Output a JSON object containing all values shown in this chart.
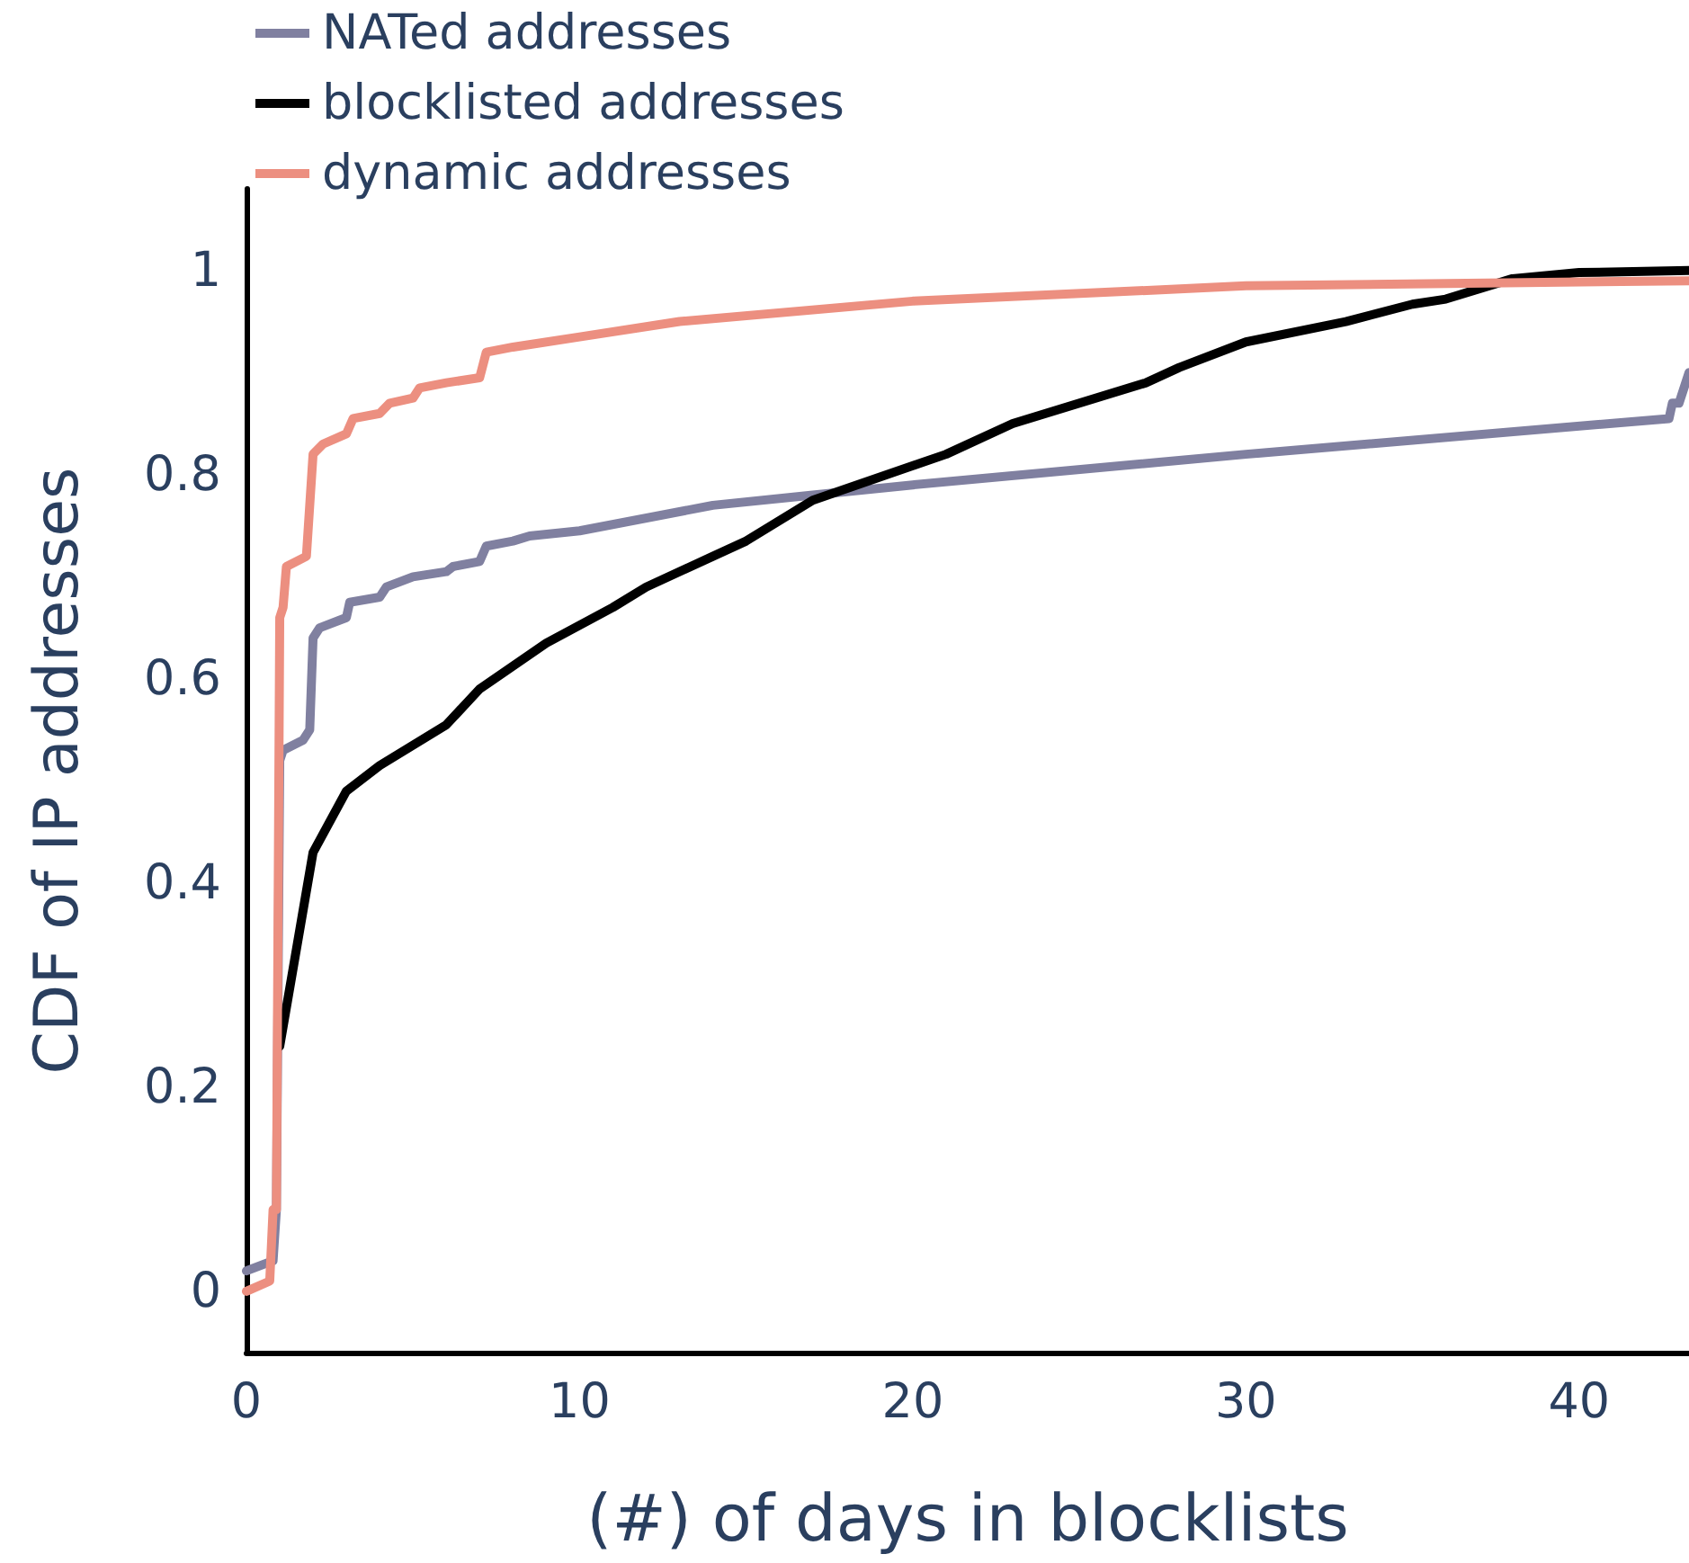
{
  "chart_data": {
    "type": "line",
    "xlabel": "(#) of days in blocklists",
    "ylabel": "CDF of IP addresses",
    "xlim": [
      0,
      43.3
    ],
    "xticks": [
      0,
      10,
      20,
      30,
      40
    ],
    "ylim": [
      -0.06,
      1.08
    ],
    "yticks": [
      0,
      0.2,
      0.4,
      0.6,
      0.8,
      1
    ],
    "grid": false,
    "legend": "top left",
    "marker": "none",
    "line_style": "solid",
    "series": [
      {
        "name": "NATed addresses",
        "color": "#8080a0",
        "x": [
          0,
          0.8,
          0.9,
          1.0,
          1.1,
          1.7,
          1.9,
          2.0,
          2.2,
          3.0,
          3.1,
          4.0,
          4.2,
          5,
          6,
          6.2,
          7,
          7.2,
          8,
          8.5,
          10,
          14,
          17,
          20,
          30,
          42.7,
          42.8,
          43.0,
          43.3
        ],
        "values": [
          0.02,
          0.03,
          0.08,
          0.52,
          0.53,
          0.54,
          0.55,
          0.64,
          0.65,
          0.66,
          0.675,
          0.68,
          0.69,
          0.7,
          0.705,
          0.71,
          0.715,
          0.73,
          0.735,
          0.74,
          0.745,
          0.77,
          0.78,
          0.79,
          0.82,
          0.855,
          0.87,
          0.87,
          0.9
        ]
      },
      {
        "name": "blocklisted addresses",
        "color": "#000000",
        "x": [
          1,
          2,
          3,
          4,
          6,
          7,
          9,
          11,
          12,
          14,
          15,
          17,
          21,
          23,
          27,
          28,
          30,
          33,
          35,
          36,
          38,
          40,
          43.3
        ],
        "values": [
          0.24,
          0.43,
          0.49,
          0.515,
          0.555,
          0.59,
          0.635,
          0.67,
          0.69,
          0.72,
          0.735,
          0.775,
          0.82,
          0.85,
          0.89,
          0.905,
          0.93,
          0.95,
          0.967,
          0.972,
          0.992,
          0.998,
          1.0
        ]
      },
      {
        "name": "dynamic addresses",
        "color": "#ec8f80",
        "x": [
          0,
          0.7,
          0.8,
          0.9,
          1.0,
          1.1,
          1.2,
          1.8,
          2,
          2.3,
          3,
          3.2,
          4,
          4.3,
          5,
          5.2,
          6,
          7,
          7.2,
          8,
          10,
          13,
          20,
          30,
          43.3
        ],
        "values": [
          0.0,
          0.01,
          0.08,
          0.08,
          0.66,
          0.67,
          0.71,
          0.72,
          0.82,
          0.83,
          0.84,
          0.855,
          0.86,
          0.87,
          0.875,
          0.885,
          0.89,
          0.895,
          0.92,
          0.925,
          0.935,
          0.95,
          0.97,
          0.985,
          0.99
        ]
      }
    ]
  }
}
